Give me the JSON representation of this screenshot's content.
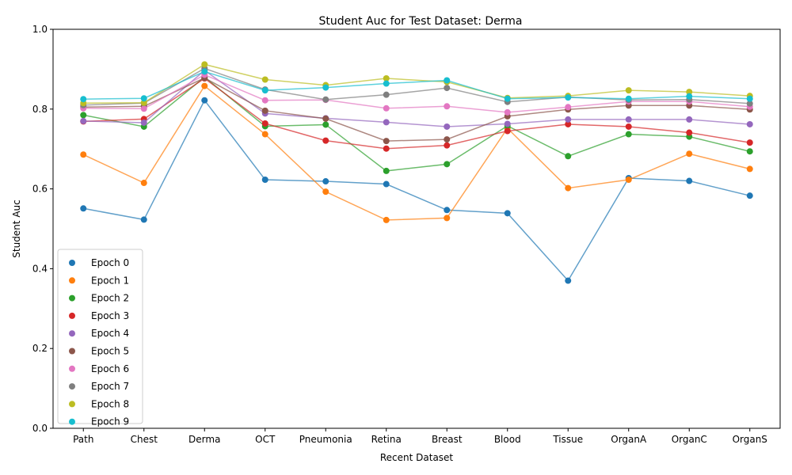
{
  "chart_data": {
    "type": "line",
    "title": "Student Auc for Test Dataset: Derma",
    "xlabel": "Recent Dataset",
    "ylabel": "Student Auc",
    "ylim": [
      0,
      1
    ],
    "yticks": [
      0.0,
      0.2,
      0.4,
      0.6,
      0.8,
      1.0
    ],
    "ytick_labels": [
      "0.0",
      "0.2",
      "0.4",
      "0.6",
      "0.8",
      "1.0"
    ],
    "grid": false,
    "legend_position": "lower-left",
    "categories": [
      "Path",
      "Chest",
      "Derma",
      "OCT",
      "Pneumonia",
      "Retina",
      "Breast",
      "Blood",
      "Tissue",
      "OrganA",
      "OrganC",
      "OrganS"
    ],
    "series": [
      {
        "name": "Epoch 0",
        "color": "#1f77b4",
        "values": [
          0.551,
          0.523,
          0.822,
          0.623,
          0.619,
          0.612,
          0.547,
          0.539,
          0.37,
          0.627,
          0.62,
          0.583
        ]
      },
      {
        "name": "Epoch 1",
        "color": "#ff7f0e",
        "values": [
          0.686,
          0.615,
          0.858,
          0.737,
          0.593,
          0.522,
          0.527,
          0.752,
          0.602,
          0.623,
          0.688,
          0.65
        ]
      },
      {
        "name": "Epoch 2",
        "color": "#2ca02c",
        "values": [
          0.785,
          0.756,
          0.88,
          0.757,
          0.761,
          0.645,
          0.662,
          0.758,
          0.682,
          0.737,
          0.731,
          0.694
        ]
      },
      {
        "name": "Epoch 3",
        "color": "#d62728",
        "values": [
          0.769,
          0.775,
          0.877,
          0.764,
          0.721,
          0.701,
          0.709,
          0.745,
          0.762,
          0.756,
          0.741,
          0.716
        ]
      },
      {
        "name": "Epoch 4",
        "color": "#9467bd",
        "values": [
          0.77,
          0.766,
          0.897,
          0.789,
          0.777,
          0.767,
          0.756,
          0.763,
          0.774,
          0.774,
          0.774,
          0.762
        ]
      },
      {
        "name": "Epoch 5",
        "color": "#8c564b",
        "values": [
          0.805,
          0.807,
          0.878,
          0.796,
          0.776,
          0.72,
          0.724,
          0.782,
          0.799,
          0.809,
          0.809,
          0.799
        ]
      },
      {
        "name": "Epoch 6",
        "color": "#e377c2",
        "values": [
          0.802,
          0.801,
          0.886,
          0.822,
          0.823,
          0.802,
          0.807,
          0.792,
          0.805,
          0.819,
          0.819,
          0.806
        ]
      },
      {
        "name": "Epoch 7",
        "color": "#7f7f7f",
        "values": [
          0.81,
          0.815,
          0.902,
          0.849,
          0.824,
          0.836,
          0.853,
          0.818,
          0.83,
          0.823,
          0.824,
          0.814
        ]
      },
      {
        "name": "Epoch 8",
        "color": "#bcbd22",
        "values": [
          0.815,
          0.816,
          0.912,
          0.874,
          0.86,
          0.877,
          0.868,
          0.828,
          0.833,
          0.847,
          0.843,
          0.833
        ]
      },
      {
        "name": "Epoch 9",
        "color": "#17becf",
        "values": [
          0.825,
          0.827,
          0.894,
          0.847,
          0.854,
          0.864,
          0.872,
          0.826,
          0.829,
          0.826,
          0.832,
          0.826
        ]
      }
    ]
  }
}
